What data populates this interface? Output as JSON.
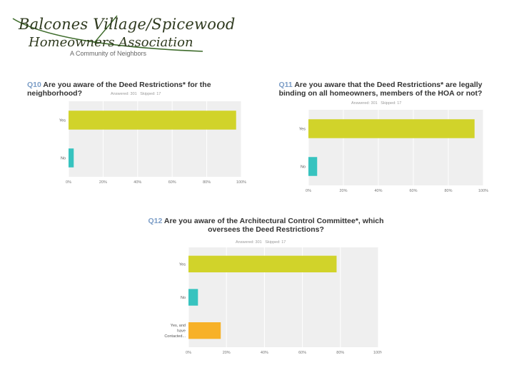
{
  "logo": {
    "line1": "Balcones Village/Spicewood",
    "line2": "Homeowners Association",
    "tagline": "A Community of Neighbors"
  },
  "colors": {
    "yes": "#d1d32a",
    "no": "#37c3bf",
    "contacted": "#f7b128",
    "plot_bg": "#efefef",
    "grid": "#ffffff"
  },
  "chart_data": [
    {
      "type": "bar",
      "orientation": "horizontal",
      "question_number": "Q10",
      "title": "Are you aware of the Deed Restrictions* for the neighborhood?",
      "answered_label": "Answered: 301",
      "skipped_label": "Skipped: 17",
      "categories": [
        "Yes",
        "No"
      ],
      "values": [
        97,
        3
      ],
      "xlim": [
        0,
        100
      ],
      "x_ticks": [
        "0%",
        "20%",
        "40%",
        "60%",
        "80%",
        "100%"
      ]
    },
    {
      "type": "bar",
      "orientation": "horizontal",
      "question_number": "Q11",
      "title": "Are you aware that the Deed Restrictions* are legally binding on all homeowners, members of the HOA or not?",
      "answered_label": "Answered: 301",
      "skipped_label": "Skipped: 17",
      "categories": [
        "Yes",
        "No"
      ],
      "values": [
        95,
        5
      ],
      "xlim": [
        0,
        100
      ],
      "x_ticks": [
        "0%",
        "20%",
        "40%",
        "60%",
        "80%",
        "100%"
      ]
    },
    {
      "type": "bar",
      "orientation": "horizontal",
      "question_number": "Q12",
      "title": "Are you aware of the Architectural Control Committee*, which oversees the Deed Restrictions?",
      "answered_label": "Answered: 301",
      "skipped_label": "Skipped: 17",
      "categories": [
        "Yes",
        "No",
        "Yes, and have Contacted..."
      ],
      "values": [
        78,
        5,
        17
      ],
      "xlim": [
        0,
        100
      ],
      "x_ticks": [
        "0%",
        "20%",
        "40%",
        "60%",
        "80%",
        "100%"
      ]
    }
  ]
}
